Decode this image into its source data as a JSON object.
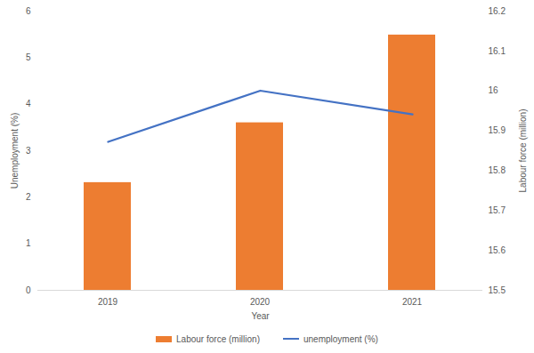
{
  "chart_data": {
    "type": "bar",
    "x_label": "Year",
    "categories": [
      "2019",
      "2020",
      "2021"
    ],
    "series": [
      {
        "name": "Labour force (million)",
        "type": "bar",
        "color": "#ed7d31",
        "axis": "y2",
        "values": [
          15.77,
          15.92,
          16.14
        ]
      },
      {
        "name": "unemployment (%)",
        "type": "line",
        "color": "#4472c4",
        "values": [
          3.19,
          4.29,
          3.78
        ]
      }
    ],
    "y_label": "Unemployment (%)",
    "ylim": [
      0,
      6
    ],
    "yticks": [
      0,
      1,
      2,
      3,
      4,
      5,
      6
    ],
    "y2_label": "Labour force (million)",
    "y2lim": [
      15.5,
      16.2
    ],
    "y2ticks": [
      15.5,
      15.6,
      15.7,
      15.8,
      15.9,
      16,
      16.1,
      16.2
    ],
    "grid": false,
    "legend": "bottom"
  }
}
